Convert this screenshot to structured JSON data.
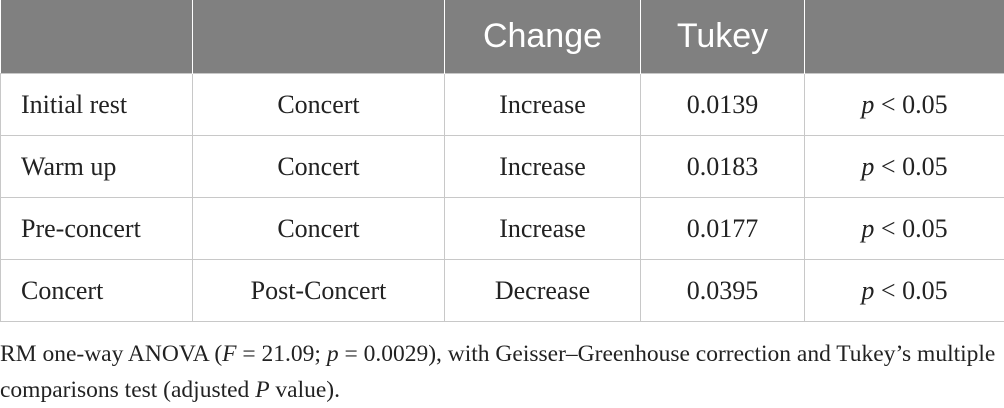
{
  "table": {
    "headers": [
      "",
      "",
      "Change",
      "Tukey",
      ""
    ],
    "rows": [
      {
        "from": "Initial rest",
        "to": "Concert",
        "change": "Increase",
        "tukey": "0.0139",
        "sig_p": "p",
        "sig_rest": " < 0.05"
      },
      {
        "from": "Warm up",
        "to": "Concert",
        "change": "Increase",
        "tukey": "0.0183",
        "sig_p": "p",
        "sig_rest": " < 0.05"
      },
      {
        "from": "Pre-concert",
        "to": "Concert",
        "change": "Increase",
        "tukey": "0.0177",
        "sig_p": "p",
        "sig_rest": " < 0.05"
      },
      {
        "from": "Concert",
        "to": "Post-Concert",
        "change": "Decrease",
        "tukey": "0.0395",
        "sig_p": "p",
        "sig_rest": " < 0.05"
      }
    ]
  },
  "footnote": {
    "part1": "RM one-way ANOVA (",
    "f_var": "F",
    "part2": " = 21.09; ",
    "p_var": "p",
    "part3": " = 0.0029), with Geisser–Greenhouse correction and Tukey’s multiple comparisons test (adjusted ",
    "P_var": "P",
    "part4": " value)."
  }
}
